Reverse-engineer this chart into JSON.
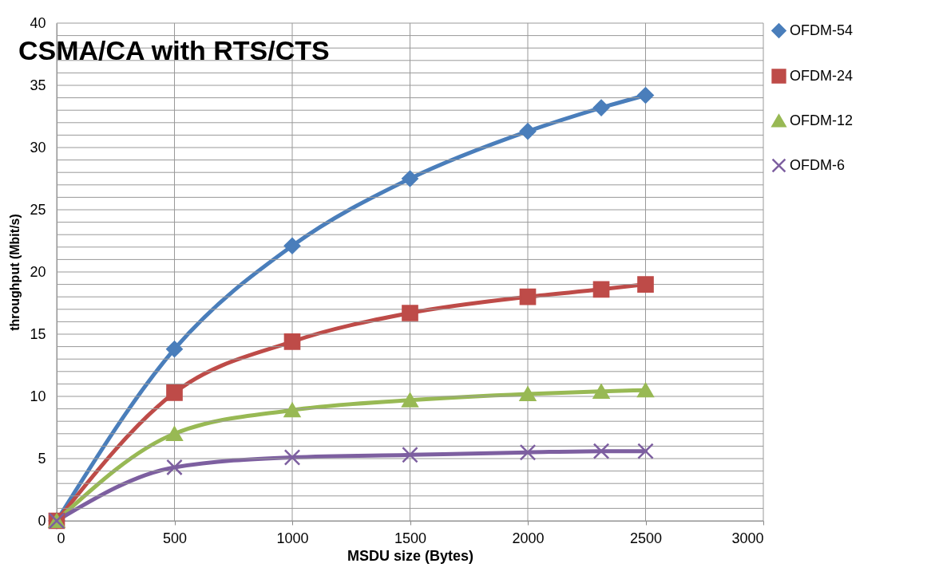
{
  "chart_data": {
    "type": "line",
    "title": "CSMA/CA with RTS/CTS",
    "xlabel": "MSDU size (Bytes)",
    "ylabel": "throughput (Mbit/s)",
    "x": [
      0,
      500,
      1000,
      1500,
      2000,
      2312,
      2500
    ],
    "series": [
      {
        "name": "OFDM-54",
        "color": "#4a7ebb",
        "marker": "diamond",
        "values": [
          0,
          13.8,
          22.1,
          27.5,
          31.3,
          33.2,
          34.2
        ]
      },
      {
        "name": "OFDM-24",
        "color": "#be4b48",
        "marker": "square",
        "values": [
          0,
          10.3,
          14.4,
          16.7,
          18.0,
          18.6,
          19.0
        ]
      },
      {
        "name": "OFDM-12",
        "color": "#98b954",
        "marker": "triangle",
        "values": [
          0,
          7.0,
          8.9,
          9.7,
          10.2,
          10.4,
          10.5
        ]
      },
      {
        "name": "OFDM-6",
        "color": "#7d5fa0",
        "marker": "cross",
        "values": [
          0,
          4.3,
          5.1,
          5.3,
          5.5,
          5.6,
          5.6
        ]
      }
    ],
    "xlim": [
      0,
      3000
    ],
    "xticks": [
      0,
      500,
      1000,
      1500,
      2000,
      2500,
      3000
    ],
    "ylim": [
      0,
      40
    ],
    "yticks": [
      0,
      {
        "value": 1,
        "label": null
      },
      {
        "value": 2,
        "label": null
      },
      {
        "value": 3,
        "label": null
      },
      {
        "value": 4,
        "label": null
      },
      5,
      {
        "value": 6,
        "label": null
      },
      {
        "value": 7,
        "label": null
      },
      {
        "value": 8,
        "label": null
      },
      {
        "value": 9,
        "label": null
      },
      10,
      {
        "value": 11,
        "label": null
      },
      {
        "value": 12,
        "label": null
      },
      {
        "value": 13,
        "label": null
      },
      {
        "value": 14,
        "label": null
      },
      15,
      {
        "value": 16,
        "label": null
      },
      {
        "value": 17,
        "label": null
      },
      {
        "value": 18,
        "label": null
      },
      {
        "value": 19,
        "label": null
      },
      20,
      {
        "value": 21,
        "label": null
      },
      {
        "value": 22,
        "label": null
      },
      {
        "value": 23,
        "label": null
      },
      {
        "value": 24,
        "label": null
      },
      25,
      {
        "value": 26,
        "label": null
      },
      {
        "value": 27,
        "label": null
      },
      {
        "value": 28,
        "label": null
      },
      {
        "value": 29,
        "label": null
      },
      30,
      {
        "value": 31,
        "label": null
      },
      {
        "value": 32,
        "label": null
      },
      {
        "value": 33,
        "label": null
      },
      {
        "value": 34,
        "label": null
      },
      35,
      {
        "value": 36,
        "label": null
      },
      {
        "value": 37,
        "label": null
      },
      {
        "value": 38,
        "label": null
      },
      {
        "value": 39,
        "label": null
      },
      40
    ],
    "grid": true,
    "legend": "right",
    "line_style": "solid"
  }
}
